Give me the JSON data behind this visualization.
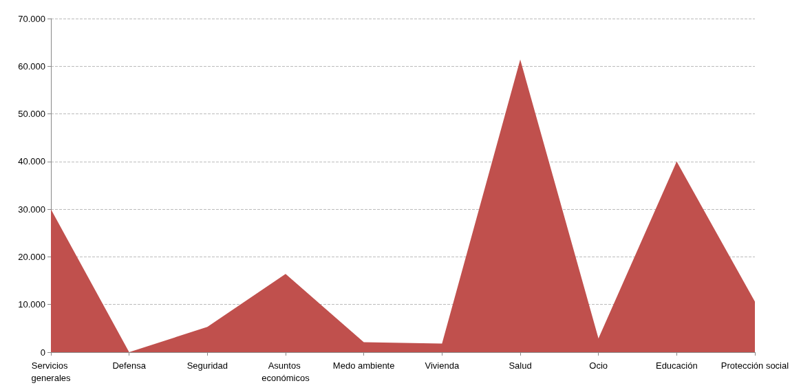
{
  "chart_data": {
    "type": "area",
    "categories": [
      "Servicios generales",
      "Defensa",
      "Seguridad",
      "Asuntos económicos",
      "Medo ambiente",
      "Vivienda",
      "Salud",
      "Ocio",
      "Educación",
      "Protección social"
    ],
    "values": [
      30000,
      0,
      5300,
      16400,
      2100,
      1800,
      61400,
      2900,
      40000,
      10600
    ],
    "color": "#c0504d",
    "ylim": [
      0,
      70000
    ],
    "yticks": [
      0,
      {
        "value": 10000,
        "label": "10.000"
      },
      {
        "value": 20000,
        "label": "20.000"
      },
      {
        "value": 30000,
        "label": "30.000"
      },
      {
        "value": 40000,
        "label": "40.000"
      },
      {
        "value": 50000,
        "label": "50.000"
      },
      {
        "value": 60000,
        "label": "60.000"
      },
      {
        "value": 70000,
        "label": "70.000"
      }
    ],
    "grid": "y",
    "marker": "none"
  }
}
